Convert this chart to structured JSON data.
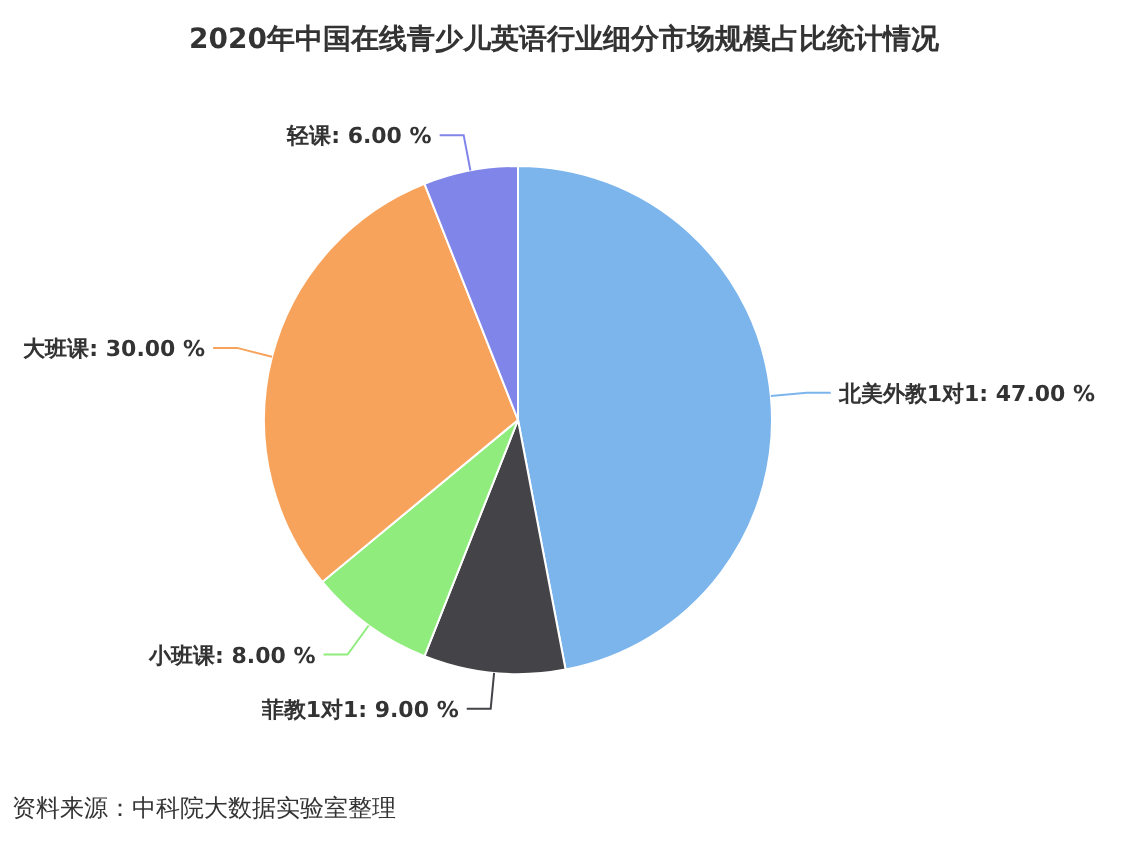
{
  "chart_data": {
    "type": "pie",
    "title": "2020年中国在线青少儿英语行业细分市场规模占比统计情况",
    "categories": [
      "北美外教1对1",
      "菲教1对1",
      "小班课",
      "大班课",
      "轻课"
    ],
    "values": [
      47,
      9,
      8,
      30,
      6
    ],
    "value_labels": [
      "47.00 %",
      "9.00 %",
      "8.00 %",
      "30.00 %",
      "6.00 %"
    ],
    "colors": [
      "#7cb5ec",
      "#434348",
      "#90ed7d",
      "#f7a35c",
      "#8085e9"
    ],
    "legend": false,
    "annotations": [
      "资料来源：中科院大数据实验室整理"
    ]
  }
}
